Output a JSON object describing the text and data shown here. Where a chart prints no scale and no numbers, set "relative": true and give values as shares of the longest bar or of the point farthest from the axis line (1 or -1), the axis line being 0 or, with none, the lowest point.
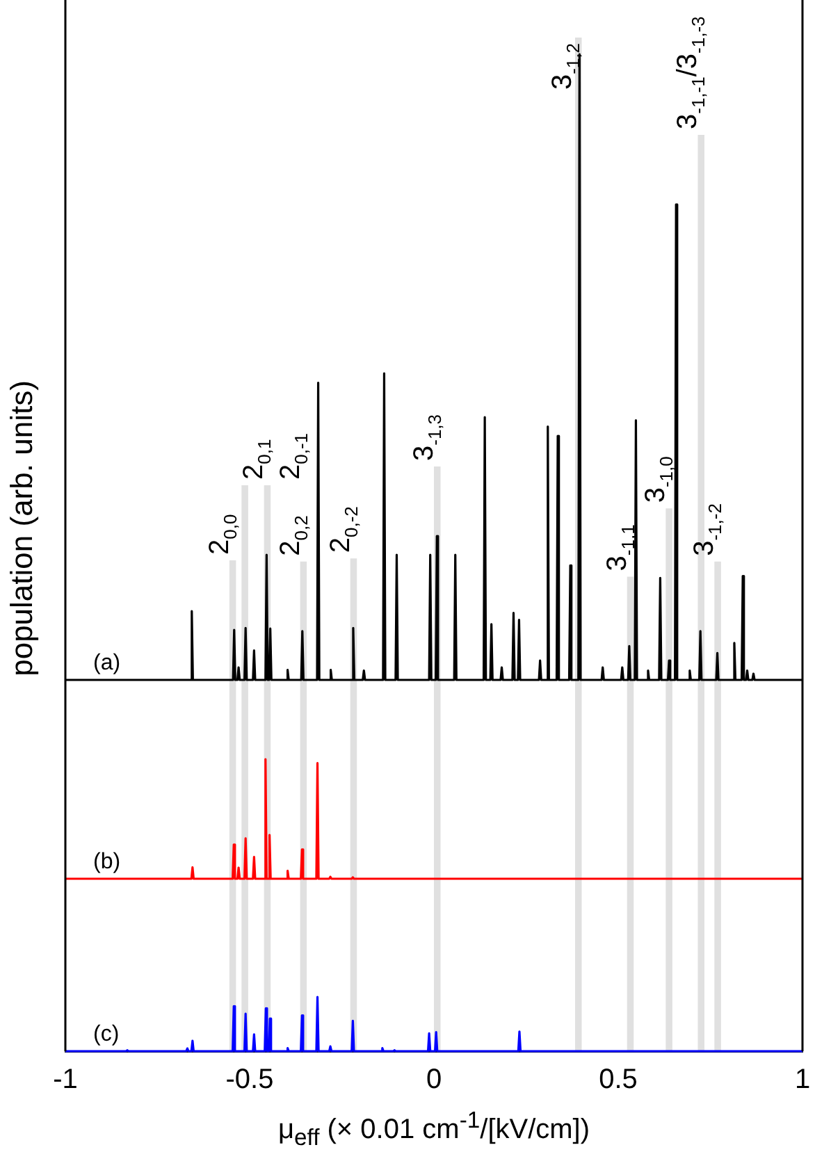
{
  "chart_data": [
    {
      "type": "line",
      "ylabel": "population (arb. units)",
      "relative": true,
      "xlim": [
        -1,
        1
      ],
      "tick_labels": false,
      "legend": false,
      "series": [
        {
          "name": "(a)",
          "color": "#000000",
          "x": [
            -1,
            -0.66,
            -0.657,
            -0.654,
            -0.545,
            -0.542,
            -0.539,
            -0.533,
            -0.53,
            -0.527,
            -0.514,
            -0.511,
            -0.508,
            -0.491,
            -0.488,
            -0.485,
            -0.457,
            -0.454,
            -0.451,
            -0.447,
            -0.444,
            -0.441,
            -0.4,
            -0.397,
            -0.394,
            -0.36,
            -0.357,
            -0.354,
            -0.317,
            -0.314,
            -0.311,
            -0.283,
            -0.28,
            -0.277,
            -0.222,
            -0.219,
            -0.216,
            -0.193,
            -0.19,
            -0.187,
            -0.138,
            -0.135,
            -0.132,
            -0.104,
            -0.101,
            -0.098,
            -0.013,
            -0.01,
            -0.007,
            0.005,
            0.008,
            0.011,
            0.055,
            0.058,
            0.061,
            0.135,
            0.138,
            0.141,
            0.153,
            0.156,
            0.159,
            0.181,
            0.184,
            0.187,
            0.213,
            0.216,
            0.219,
            0.228,
            0.231,
            0.234,
            0.285,
            0.288,
            0.291,
            0.306,
            0.309,
            0.312,
            0.333,
            0.336,
            0.339,
            0.367,
            0.37,
            0.373,
            0.392,
            0.395,
            0.398,
            0.455,
            0.458,
            0.461,
            0.508,
            0.511,
            0.514,
            0.527,
            0.53,
            0.533,
            0.545,
            0.548,
            0.551,
            0.578,
            0.581,
            0.584,
            0.611,
            0.614,
            0.617,
            0.635,
            0.638,
            0.641,
            0.654,
            0.657,
            0.66,
            0.691,
            0.694,
            0.697,
            0.72,
            0.723,
            0.726,
            0.766,
            0.769,
            0.772,
            0.812,
            0.815,
            0.818,
            0.835,
            0.838,
            0.841,
            0.847,
            0.85,
            0.853,
            0.864,
            0.867,
            0.87,
            1
          ],
          "values": [
            0,
            0,
            0.11,
            0,
            0,
            0.08,
            0,
            0,
            0.02,
            0,
            0,
            0.083,
            0,
            0,
            0.047,
            0,
            0,
            0.2,
            0,
            0,
            0.082,
            0,
            0,
            0.016,
            0,
            0,
            0.078,
            0,
            0,
            0.475,
            0,
            0,
            0.016,
            0,
            0,
            0.083,
            0,
            0,
            0.015,
            0,
            0,
            0.49,
            0,
            0,
            0.2,
            0,
            0,
            0.2,
            0,
            0,
            0.23,
            0,
            0,
            0.2,
            0,
            0,
            0.42,
            0,
            0,
            0.089,
            0,
            0,
            0.02,
            0,
            0,
            0.107,
            0,
            0,
            0.096,
            0,
            0,
            0.031,
            0,
            0,
            0.405,
            0,
            0,
            0.39,
            0,
            0,
            0.183,
            0,
            0,
            1,
            0,
            0,
            0.02,
            0,
            0,
            0.02,
            0,
            0,
            0.054,
            0,
            0,
            0.415,
            0,
            0,
            0.015,
            0,
            0,
            0.163,
            0,
            0,
            0.031,
            0,
            0,
            0.76,
            0,
            0,
            0.015,
            0,
            0,
            0.078,
            0,
            0,
            0.043,
            0,
            0,
            0.059,
            0,
            0,
            0.166,
            0,
            0,
            0.015,
            0,
            0,
            0.01,
            0,
            0
          ]
        }
      ],
      "bands": [
        {
          "axis": "x",
          "from": -0.555,
          "to": -0.537,
          "label": "2$_{0,0}$",
          "color": "#e0e0e0"
        },
        {
          "axis": "x",
          "from": -0.522,
          "to": -0.504,
          "label": "2$_{0,1}$",
          "color": "#e0e0e0"
        },
        {
          "axis": "x",
          "from": -0.461,
          "to": -0.443,
          "label": "2$_{0,-1}$",
          "color": "#e0e0e0"
        },
        {
          "axis": "x",
          "from": -0.363,
          "to": -0.345,
          "label": "2$_{0,2}$",
          "color": "#e0e0e0"
        },
        {
          "axis": "x",
          "from": -0.227,
          "to": -0.209,
          "label": "2$_{0,-2}$",
          "color": "#e0e0e0"
        },
        {
          "axis": "x",
          "from": 0,
          "to": 0.018,
          "label": "3$_{-1,3}$",
          "color": "#e0e0e0"
        },
        {
          "axis": "x",
          "from": 0.383,
          "to": 0.401,
          "label": "3$_{-1,2}$",
          "color": "#e0e0e0"
        },
        {
          "axis": "x",
          "from": 0.524,
          "to": 0.542,
          "label": "3$_{-1,1}$",
          "color": "#e0e0e0"
        },
        {
          "axis": "x",
          "from": 0.629,
          "to": 0.647,
          "label": "3$_{-1,0}$",
          "color": "#e0e0e0"
        },
        {
          "axis": "x",
          "from": 0.716,
          "to": 0.734,
          "label": "3$_{-1,-1}$/3$_{-1,-3}$",
          "color": "#e0e0e0"
        },
        {
          "axis": "x",
          "from": 0.761,
          "to": 0.779,
          "label": "3$_{-1,-2}$",
          "color": "#e0e0e0"
        }
      ]
    },
    {
      "type": "line",
      "relative": true,
      "xlim": [
        -1,
        1
      ],
      "tick_labels": false,
      "legend": false,
      "series": [
        {
          "name": "(b)",
          "color": "#ff0000",
          "x": [
            -1,
            -0.658,
            -0.655,
            -0.652,
            -0.546,
            -0.543,
            -0.54,
            -0.533,
            -0.53,
            -0.527,
            -0.514,
            -0.511,
            -0.508,
            -0.491,
            -0.488,
            -0.485,
            -0.46,
            -0.457,
            -0.454,
            -0.449,
            -0.446,
            -0.443,
            -0.4,
            -0.397,
            -0.394,
            -0.361,
            -0.358,
            -0.355,
            -0.319,
            -0.316,
            -0.313,
            -0.284,
            -0.281,
            -0.278,
            -0.223,
            -0.22,
            -0.217,
            1
          ],
          "values": [
            0,
            0,
            0.095,
            0,
            0,
            0.286,
            0,
            0,
            0.093,
            0,
            0,
            0.338,
            0,
            0,
            0.183,
            0,
            0,
            1,
            0,
            0,
            0.366,
            0,
            0,
            0.067,
            0,
            0,
            0.245,
            0,
            0,
            0.967,
            0,
            0,
            0.016,
            0,
            0,
            0.012,
            0,
            0
          ]
        }
      ],
      "bands": [
        {
          "axis": "x",
          "from": -0.555,
          "to": -0.537,
          "color": "#e0e0e0"
        },
        {
          "axis": "x",
          "from": -0.522,
          "to": -0.504,
          "color": "#e0e0e0"
        },
        {
          "axis": "x",
          "from": -0.461,
          "to": -0.443,
          "color": "#e0e0e0"
        },
        {
          "axis": "x",
          "from": -0.363,
          "to": -0.345,
          "color": "#e0e0e0"
        },
        {
          "axis": "x",
          "from": -0.227,
          "to": -0.209,
          "color": "#e0e0e0"
        },
        {
          "axis": "x",
          "from": 0,
          "to": 0.018,
          "color": "#e0e0e0"
        },
        {
          "axis": "x",
          "from": 0.383,
          "to": 0.401,
          "color": "#e0e0e0"
        },
        {
          "axis": "x",
          "from": 0.524,
          "to": 0.542,
          "color": "#e0e0e0"
        },
        {
          "axis": "x",
          "from": 0.629,
          "to": 0.647,
          "color": "#e0e0e0"
        },
        {
          "axis": "x",
          "from": 0.716,
          "to": 0.734,
          "color": "#e0e0e0"
        },
        {
          "axis": "x",
          "from": 0.761,
          "to": 0.779,
          "color": "#e0e0e0"
        }
      ]
    },
    {
      "type": "line",
      "xlabel": "μ$_{eff}$ (× 0.01 cm$^{-1}$/[kV/cm])",
      "relative": true,
      "xlim": [
        -1,
        1
      ],
      "xticks": [
        -1,
        -0.5,
        0,
        0.5,
        1
      ],
      "tick_labels": "x",
      "legend": false,
      "series": [
        {
          "name": "(c)",
          "color": "#0000ff",
          "x": [
            -1,
            -0.835,
            -0.832,
            -0.829,
            -0.672,
            -0.669,
            -0.666,
            -0.658,
            -0.655,
            -0.652,
            -0.546,
            -0.543,
            -0.54,
            -0.514,
            -0.511,
            -0.508,
            -0.491,
            -0.488,
            -0.485,
            -0.459,
            -0.456,
            -0.453,
            -0.448,
            -0.445,
            -0.442,
            -0.4,
            -0.397,
            -0.394,
            -0.361,
            -0.358,
            -0.355,
            -0.319,
            -0.316,
            -0.313,
            -0.284,
            -0.281,
            -0.278,
            -0.223,
            -0.22,
            -0.217,
            -0.143,
            -0.14,
            -0.137,
            -0.11,
            -0.107,
            -0.104,
            -0.016,
            -0.013,
            -0.01,
            0.003,
            0.006,
            0.009,
            0.229,
            0.232,
            0.235,
            1
          ],
          "values": [
            0,
            0,
            0.016,
            0,
            0,
            0.05,
            0,
            0,
            0.19,
            0,
            0,
            0.83,
            0,
            0,
            0.69,
            0,
            0,
            0.31,
            0,
            0,
            0.79,
            0,
            0,
            0.6,
            0,
            0,
            0.056,
            0,
            0,
            0.66,
            0,
            0,
            1,
            0,
            0,
            0.088,
            0,
            0,
            0.56,
            0,
            0,
            0.056,
            0,
            0,
            0.016,
            0,
            0,
            0.33,
            0,
            0,
            0.35,
            0,
            0,
            0.36,
            0,
            0
          ]
        }
      ],
      "bands": [
        {
          "axis": "x",
          "from": -0.555,
          "to": -0.537,
          "color": "#e0e0e0"
        },
        {
          "axis": "x",
          "from": -0.522,
          "to": -0.504,
          "color": "#e0e0e0"
        },
        {
          "axis": "x",
          "from": -0.461,
          "to": -0.443,
          "color": "#e0e0e0"
        },
        {
          "axis": "x",
          "from": -0.363,
          "to": -0.345,
          "color": "#e0e0e0"
        },
        {
          "axis": "x",
          "from": -0.227,
          "to": -0.209,
          "color": "#e0e0e0"
        },
        {
          "axis": "x",
          "from": 0,
          "to": 0.018,
          "color": "#e0e0e0"
        },
        {
          "axis": "x",
          "from": 0.383,
          "to": 0.401,
          "color": "#e0e0e0"
        },
        {
          "axis": "x",
          "from": 0.524,
          "to": 0.542,
          "color": "#e0e0e0"
        },
        {
          "axis": "x",
          "from": 0.629,
          "to": 0.647,
          "color": "#e0e0e0"
        },
        {
          "axis": "x",
          "from": 0.716,
          "to": 0.734,
          "color": "#e0e0e0"
        },
        {
          "axis": "x",
          "from": 0.761,
          "to": 0.779,
          "color": "#e0e0e0"
        }
      ]
    }
  ]
}
